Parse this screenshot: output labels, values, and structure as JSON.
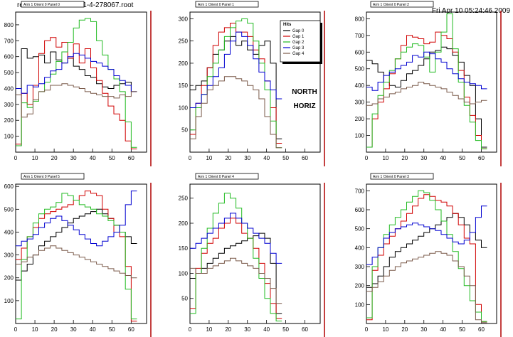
{
  "header": {
    "file_path": "result/onlMon/histos-1-4-278067.root",
    "timestamp": "Fri Apr 10 05:24:46 2009"
  },
  "overlay_text": [
    "NORTH",
    "HORIZ"
  ],
  "legend": {
    "title": "Hits",
    "entries": [
      {
        "label": "Gap 0",
        "color": "#000000"
      },
      {
        "label": "Gap 1",
        "color": "#d00000"
      },
      {
        "label": "Gap 2",
        "color": "#22bb22"
      },
      {
        "label": "Gap 3",
        "color": "#0000d0"
      },
      {
        "label": "Gap 4",
        "color": "#7a5a4a"
      }
    ]
  },
  "chart_data": [
    {
      "type": "line",
      "title": "Arm 1 Orient 0 Panel 0",
      "x": [
        0,
        3,
        6,
        9,
        12,
        15,
        18,
        21,
        24,
        27,
        30,
        33,
        36,
        39,
        42,
        45,
        48,
        51,
        54,
        57,
        60
      ],
      "xlim": [
        0,
        68
      ],
      "xticks": [
        0,
        10,
        20,
        30,
        40,
        50,
        60
      ],
      "ylim": [
        0,
        880
      ],
      "yticks": [
        100,
        200,
        300,
        400,
        500,
        600,
        700,
        800
      ],
      "series": [
        {
          "name": "Gap 0",
          "values": [
            40,
            650,
            590,
            600,
            610,
            560,
            630,
            580,
            560,
            590,
            540,
            520,
            480,
            470,
            430,
            410,
            400,
            420,
            430,
            440,
            380
          ]
        },
        {
          "name": "Gap 1",
          "values": [
            50,
            370,
            300,
            420,
            620,
            700,
            720,
            660,
            690,
            590,
            680,
            560,
            650,
            530,
            450,
            370,
            290,
            240,
            200,
            70,
            20
          ]
        },
        {
          "name": "Gap 2",
          "values": [
            40,
            310,
            280,
            320,
            380,
            440,
            490,
            570,
            630,
            690,
            780,
            830,
            840,
            820,
            700,
            610,
            520,
            460,
            380,
            190,
            30
          ]
        },
        {
          "name": "Gap 3",
          "values": [
            400,
            370,
            420,
            410,
            430,
            470,
            510,
            520,
            560,
            600,
            620,
            610,
            590,
            570,
            560,
            540,
            520,
            480,
            450,
            420,
            380
          ]
        },
        {
          "name": "Gap 4",
          "values": [
            360,
            220,
            240,
            330,
            380,
            390,
            420,
            420,
            430,
            420,
            410,
            400,
            380,
            370,
            360,
            350,
            350,
            340,
            360,
            350,
            380
          ]
        }
      ]
    },
    {
      "type": "line",
      "title": "Arm 1 Orient 0 Panel 1",
      "x": [
        0,
        3,
        6,
        9,
        12,
        15,
        18,
        21,
        24,
        27,
        30,
        33,
        36,
        39,
        42,
        45
      ],
      "xlim": [
        0,
        68
      ],
      "xticks": [
        0,
        10,
        20,
        30,
        40,
        50,
        60
      ],
      "ylim": [
        0,
        315
      ],
      "yticks": [
        50,
        100,
        150,
        200,
        250,
        300
      ],
      "series": [
        {
          "name": "Gap 0",
          "values": [
            140,
            150,
            160,
            190,
            220,
            230,
            250,
            260,
            240,
            250,
            230,
            220,
            240,
            250,
            200,
            30
          ]
        },
        {
          "name": "Gap 1",
          "values": [
            40,
            110,
            150,
            190,
            240,
            270,
            280,
            290,
            270,
            270,
            260,
            230,
            210,
            160,
            100,
            20
          ]
        },
        {
          "name": "Gap 2",
          "values": [
            50,
            100,
            130,
            170,
            200,
            230,
            260,
            280,
            295,
            300,
            290,
            250,
            200,
            140,
            70,
            10
          ]
        },
        {
          "name": "Gap 3",
          "values": [
            100,
            110,
            130,
            150,
            170,
            190,
            220,
            250,
            270,
            260,
            240,
            210,
            180,
            160,
            140,
            120
          ]
        },
        {
          "name": "Gap 4",
          "values": [
            30,
            80,
            110,
            140,
            150,
            160,
            170,
            170,
            165,
            160,
            150,
            140,
            120,
            80,
            40,
            10
          ]
        }
      ]
    },
    {
      "type": "line",
      "title": "Arm 1 Orient 0 Panel 2",
      "x": [
        0,
        3,
        6,
        9,
        12,
        15,
        18,
        21,
        24,
        27,
        30,
        33,
        36,
        39,
        42,
        45,
        48,
        51,
        54,
        57,
        60
      ],
      "xlim": [
        0,
        68
      ],
      "xticks": [
        0,
        10,
        20,
        30,
        40,
        50,
        60
      ],
      "ylim": [
        0,
        840
      ],
      "yticks": [
        100,
        200,
        300,
        400,
        500,
        600,
        700,
        800
      ],
      "series": [
        {
          "name": "Gap 0",
          "values": [
            550,
            530,
            480,
            420,
            400,
            390,
            430,
            470,
            490,
            520,
            560,
            600,
            610,
            630,
            620,
            580,
            540,
            460,
            400,
            200,
            30
          ]
        },
        {
          "name": "Gap 1",
          "values": [
            30,
            200,
            300,
            380,
            470,
            560,
            640,
            700,
            690,
            680,
            650,
            660,
            720,
            700,
            680,
            600,
            490,
            330,
            220,
            100,
            20
          ]
        },
        {
          "name": "Gap 2",
          "values": [
            30,
            230,
            340,
            420,
            490,
            560,
            600,
            630,
            650,
            640,
            570,
            480,
            600,
            720,
            830,
            620,
            420,
            280,
            180,
            70,
            20
          ]
        },
        {
          "name": "Gap 3",
          "values": [
            390,
            370,
            420,
            460,
            480,
            500,
            520,
            540,
            580,
            570,
            600,
            590,
            560,
            540,
            500,
            470,
            440,
            420,
            410,
            400,
            380
          ]
        },
        {
          "name": "Gap 4",
          "values": [
            280,
            290,
            320,
            330,
            350,
            360,
            380,
            390,
            400,
            420,
            410,
            400,
            390,
            380,
            360,
            340,
            320,
            300,
            290,
            300,
            310
          ]
        }
      ]
    },
    {
      "type": "line",
      "title": "Arm 1 Orient 0 Panel 5",
      "x": [
        0,
        3,
        6,
        9,
        12,
        15,
        18,
        21,
        24,
        27,
        30,
        33,
        36,
        39,
        42,
        45,
        48,
        51,
        54,
        57,
        60
      ],
      "xlim": [
        0,
        68
      ],
      "xticks": [
        0,
        10,
        20,
        30,
        40,
        50,
        60
      ],
      "ylim": [
        0,
        610
      ],
      "yticks": [
        100,
        200,
        300,
        400,
        500,
        600
      ],
      "series": [
        {
          "name": "Gap 0",
          "values": [
            190,
            230,
            260,
            300,
            340,
            360,
            380,
            400,
            420,
            440,
            460,
            470,
            480,
            490,
            500,
            480,
            460,
            430,
            400,
            380,
            350
          ]
        },
        {
          "name": "Gap 1",
          "values": [
            280,
            330,
            380,
            420,
            460,
            480,
            490,
            500,
            510,
            520,
            540,
            560,
            580,
            570,
            560,
            500,
            460,
            400,
            380,
            250,
            10
          ]
        },
        {
          "name": "Gap 2",
          "values": [
            20,
            280,
            380,
            440,
            480,
            500,
            510,
            530,
            570,
            560,
            540,
            520,
            510,
            500,
            480,
            470,
            450,
            430,
            400,
            150,
            20
          ]
        },
        {
          "name": "Gap 3",
          "values": [
            340,
            360,
            370,
            390,
            420,
            440,
            460,
            470,
            450,
            430,
            410,
            390,
            370,
            350,
            340,
            360,
            380,
            400,
            430,
            520,
            580
          ]
        },
        {
          "name": "Gap 4",
          "values": [
            260,
            270,
            290,
            300,
            320,
            330,
            340,
            330,
            320,
            310,
            300,
            290,
            280,
            270,
            260,
            250,
            240,
            230,
            220,
            210,
            200
          ]
        }
      ]
    },
    {
      "type": "line",
      "title": "Arm 1 Orient 0 Panel 4",
      "x": [
        0,
        3,
        6,
        9,
        12,
        15,
        18,
        21,
        24,
        27,
        30,
        33,
        36,
        39,
        42,
        45
      ],
      "xlim": [
        0,
        68
      ],
      "xticks": [
        0,
        10,
        20,
        30,
        40,
        50,
        60
      ],
      "ylim": [
        0,
        278
      ],
      "yticks": [
        50,
        100,
        150,
        200,
        250
      ],
      "series": [
        {
          "name": "Gap 0",
          "values": [
            90,
            100,
            110,
            120,
            130,
            140,
            150,
            155,
            160,
            165,
            170,
            175,
            180,
            170,
            120,
            20
          ]
        },
        {
          "name": "Gap 1",
          "values": [
            30,
            110,
            140,
            160,
            170,
            190,
            200,
            210,
            200,
            180,
            170,
            150,
            120,
            80,
            40,
            10
          ]
        },
        {
          "name": "Gap 2",
          "values": [
            20,
            100,
            150,
            190,
            220,
            240,
            260,
            250,
            230,
            200,
            170,
            130,
            90,
            50,
            20,
            5
          ]
        },
        {
          "name": "Gap 3",
          "values": [
            150,
            160,
            170,
            180,
            190,
            200,
            210,
            220,
            210,
            200,
            190,
            180,
            170,
            160,
            140,
            120
          ]
        },
        {
          "name": "Gap 4",
          "values": [
            110,
            100,
            100,
            110,
            115,
            120,
            125,
            130,
            125,
            120,
            115,
            110,
            100,
            90,
            70,
            40
          ]
        }
      ]
    },
    {
      "type": "line",
      "title": "Arm 1 Orient 0 Panel 3",
      "x": [
        0,
        3,
        6,
        9,
        12,
        15,
        18,
        21,
        24,
        27,
        30,
        33,
        36,
        39,
        42,
        45,
        48,
        51,
        54,
        57,
        60
      ],
      "xlim": [
        0,
        68
      ],
      "xticks": [
        0,
        10,
        20,
        30,
        40,
        50,
        60
      ],
      "ylim": [
        0,
        735
      ],
      "yticks": [
        100,
        200,
        300,
        400,
        500,
        600,
        700
      ],
      "series": [
        {
          "name": "Gap 0",
          "values": [
            190,
            210,
            250,
            300,
            350,
            380,
            400,
            420,
            440,
            460,
            480,
            500,
            520,
            540,
            560,
            580,
            560,
            520,
            480,
            440,
            400
          ]
        },
        {
          "name": "Gap 1",
          "values": [
            20,
            280,
            360,
            420,
            460,
            500,
            540,
            580,
            620,
            660,
            680,
            670,
            650,
            640,
            620,
            580,
            520,
            450,
            420,
            100,
            10
          ]
        },
        {
          "name": "Gap 2",
          "values": [
            30,
            300,
            400,
            470,
            520,
            560,
            600,
            640,
            670,
            700,
            690,
            650,
            600,
            540,
            470,
            380,
            290,
            200,
            120,
            60,
            10
          ]
        },
        {
          "name": "Gap 3",
          "values": [
            310,
            350,
            400,
            450,
            480,
            500,
            510,
            520,
            530,
            520,
            510,
            500,
            490,
            470,
            450,
            430,
            420,
            440,
            480,
            560,
            620
          ]
        },
        {
          "name": "Gap 4",
          "values": [
            170,
            190,
            220,
            250,
            280,
            300,
            320,
            330,
            340,
            350,
            360,
            370,
            380,
            370,
            360,
            330,
            300,
            250,
            200,
            20,
            5
          ]
        }
      ]
    }
  ]
}
